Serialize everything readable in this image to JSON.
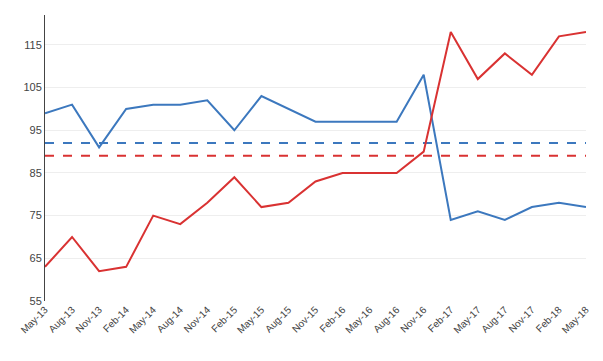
{
  "chart_data": {
    "type": "line",
    "categories": [
      "May-13",
      "Aug-13",
      "Nov-13",
      "Feb-14",
      "May-14",
      "Aug-14",
      "Nov-14",
      "Feb-15",
      "May-15",
      "Aug-15",
      "Nov-15",
      "Feb-16",
      "May-16",
      "Aug-16",
      "Nov-16",
      "Feb-17",
      "May-17",
      "Aug-17",
      "Nov-17",
      "Feb-18",
      "May-18"
    ],
    "series": [
      {
        "color": "#3c78be",
        "values": [
          99,
          101,
          91,
          100,
          101,
          101,
          102,
          95,
          103,
          100,
          97,
          97,
          97,
          97,
          108,
          74,
          76,
          74,
          77,
          78,
          77
        ]
      },
      {
        "color": "#d93232",
        "values": [
          63,
          70,
          62,
          63,
          75,
          73,
          78,
          84,
          77,
          78,
          83,
          85,
          85,
          85,
          90,
          118,
          107,
          113,
          108,
          117,
          118
        ]
      }
    ],
    "reference_lines": [
      {
        "value": 92,
        "color": "#3c78be",
        "line_style": "dashed"
      },
      {
        "value": 89,
        "color": "#d93232",
        "line_style": "dashed"
      }
    ],
    "ylim": [
      55,
      122
    ],
    "yticks": [
      55,
      65,
      75,
      85,
      95,
      105,
      115
    ],
    "grid": true
  }
}
